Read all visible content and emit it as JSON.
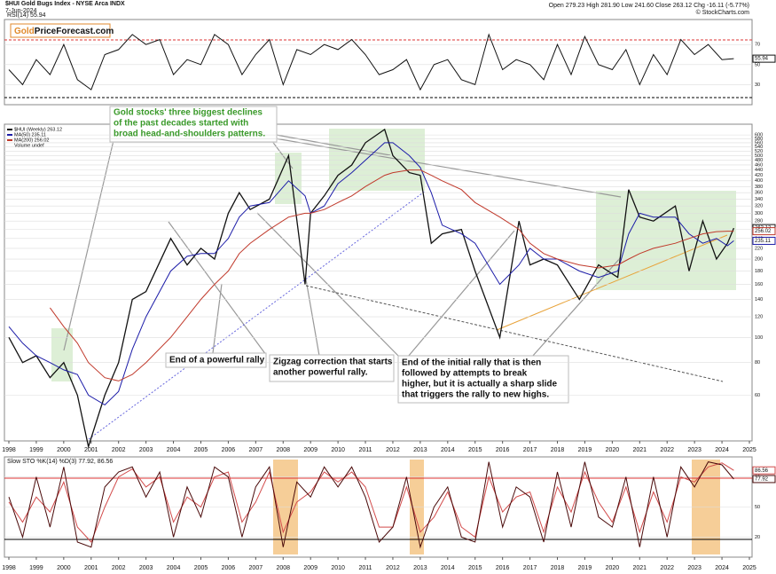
{
  "header": {
    "title": "$HUI Gold Bugs Index - NYSE Arca INDX",
    "date": "7-Jun-2024",
    "quote": "Open 279.23 High 281.90 Low 241.60 Close 263.12 Chg -16.11 (-5.77%)",
    "credit": "© StockCharts.com"
  },
  "logo": {
    "part1": "Gold",
    "part2": "PriceForecast.com"
  },
  "chart_data": [
    {
      "type": "line",
      "label": "RSI(14) 55.94",
      "x": [
        1998,
        1998.5,
        1999,
        1999.5,
        2000,
        2000.5,
        2001,
        2001.5,
        2002,
        2002.5,
        2003,
        2003.5,
        2004,
        2004.5,
        2005,
        2005.5,
        2006,
        2006.5,
        2007,
        2007.5,
        2008,
        2008.5,
        2009,
        2009.5,
        2010,
        2010.5,
        2011,
        2011.5,
        2012,
        2012.5,
        2013,
        2013.5,
        2014,
        2014.5,
        2015,
        2015.5,
        2016,
        2016.5,
        2017,
        2017.5,
        2018,
        2018.5,
        2019,
        2019.5,
        2020,
        2020.5,
        2021,
        2021.5,
        2022,
        2022.5,
        2023,
        2023.5,
        2024,
        2024.43
      ],
      "series": [
        {
          "color": "#111111",
          "values": [
            45,
            30,
            55,
            40,
            70,
            35,
            25,
            60,
            65,
            80,
            70,
            75,
            40,
            55,
            50,
            80,
            70,
            40,
            60,
            75,
            30,
            65,
            60,
            70,
            65,
            75,
            60,
            40,
            45,
            55,
            25,
            50,
            55,
            35,
            30,
            80,
            45,
            55,
            50,
            35,
            70,
            40,
            78,
            50,
            45,
            65,
            30,
            60,
            40,
            75,
            60,
            70,
            55,
            55.94
          ]
        }
      ],
      "xlim": [
        1998,
        2025
      ],
      "ylim": [
        10,
        95
      ],
      "yticks": [
        30,
        50,
        70
      ],
      "log_scale": false
    },
    {
      "type": "line",
      "log_scale": true,
      "volume_label": "Volume undef",
      "x": [
        1998.0,
        1998.5,
        1999.0,
        1999.5,
        2000.0,
        2000.5,
        2000.9,
        2001.5,
        2002.0,
        2002.5,
        2003.0,
        2003.9,
        2004.5,
        2005.0,
        2005.5,
        2006.0,
        2006.4,
        2006.8,
        2007.5,
        2008.2,
        2008.8,
        2009.0,
        2009.5,
        2010.0,
        2010.5,
        2011.0,
        2011.7,
        2012.0,
        2012.6,
        2013.0,
        2013.4,
        2013.8,
        2014.5,
        2015.0,
        2015.9,
        2016.6,
        2017.0,
        2017.5,
        2018.0,
        2018.8,
        2019.5,
        2020.2,
        2020.6,
        2021.0,
        2021.5,
        2022.3,
        2022.8,
        2023.3,
        2023.8,
        2024.2,
        2024.43
      ],
      "series": [
        {
          "name": "$HUI (Weekly) 263.12",
          "color": "#111111",
          "values": [
            100,
            80,
            85,
            70,
            80,
            60,
            38,
            60,
            80,
            140,
            150,
            240,
            190,
            220,
            200,
            300,
            360,
            310,
            340,
            500,
            160,
            300,
            350,
            420,
            460,
            560,
            630,
            500,
            430,
            420,
            230,
            250,
            260,
            180,
            100,
            280,
            190,
            200,
            190,
            140,
            190,
            170,
            370,
            290,
            280,
            320,
            180,
            280,
            200,
            230,
            263.12
          ]
        },
        {
          "name": "MA(50) 235.11",
          "color": "#1c1ca8",
          "values": [
            110,
            95,
            85,
            80,
            75,
            72,
            60,
            55,
            62,
            90,
            120,
            180,
            205,
            210,
            210,
            240,
            290,
            320,
            330,
            400,
            350,
            300,
            320,
            390,
            430,
            480,
            560,
            560,
            500,
            450,
            360,
            270,
            250,
            230,
            160,
            190,
            220,
            200,
            200,
            180,
            170,
            180,
            250,
            300,
            290,
            290,
            250,
            230,
            240,
            225,
            235.11
          ]
        },
        {
          "name": "MA(200) 256.02",
          "color": "#c0392b",
          "values": [
            null,
            null,
            null,
            130,
            110,
            95,
            80,
            70,
            68,
            72,
            80,
            100,
            120,
            140,
            160,
            180,
            210,
            230,
            260,
            290,
            300,
            300,
            310,
            330,
            350,
            380,
            420,
            430,
            440,
            440,
            420,
            400,
            370,
            330,
            290,
            260,
            230,
            210,
            200,
            190,
            185,
            190,
            200,
            210,
            220,
            230,
            240,
            250,
            255,
            256,
            256.02
          ]
        }
      ],
      "xlim": [
        1998,
        2025
      ],
      "ylim": [
        40,
        660
      ],
      "yticks": [
        60,
        80,
        100,
        120,
        140,
        160,
        180,
        200,
        220,
        240,
        260,
        280,
        300,
        320,
        340,
        360,
        380,
        400,
        420,
        440,
        460,
        480,
        500,
        520,
        540,
        560,
        580,
        600
      ],
      "xticks": [
        1998,
        1999,
        2000,
        2001,
        2002,
        2003,
        2004,
        2005,
        2006,
        2007,
        2008,
        2009,
        2010,
        2011,
        2012,
        2013,
        2014,
        2015,
        2016,
        2017,
        2018,
        2019,
        2020,
        2021,
        2022,
        2023,
        2024,
        2025
      ],
      "annotations": [
        [
          "Gold stocks' three biggest declines",
          "of the past decades started with",
          "broad head-and-shoulders patterns."
        ],
        [
          "End of a powerful rally"
        ],
        [
          "Zigzag correction that starts",
          "another powerful rally."
        ],
        [
          "End of the initial rally that is then",
          "followed by attempts to break",
          "higher, but it is actually a sharp slide",
          "that triggers the rally to new highs."
        ]
      ]
    },
    {
      "type": "line",
      "label": "Slow STO %K(14) %D(3) 77.92, 86.56",
      "x": [
        1998,
        1998.5,
        1999,
        1999.5,
        2000,
        2000.5,
        2001,
        2001.5,
        2002,
        2002.5,
        2003,
        2003.5,
        2004,
        2004.5,
        2005,
        2005.5,
        2006,
        2006.5,
        2007,
        2007.5,
        2008,
        2008.5,
        2009,
        2009.5,
        2010,
        2010.5,
        2011,
        2011.5,
        2012,
        2012.5,
        2013,
        2013.5,
        2014,
        2014.5,
        2015,
        2015.5,
        2016,
        2016.5,
        2017,
        2017.5,
        2018,
        2018.5,
        2019,
        2019.5,
        2020,
        2020.5,
        2021,
        2021.5,
        2022,
        2022.5,
        2023,
        2023.5,
        2024,
        2024.43
      ],
      "series": [
        {
          "color": "#d24a4a",
          "values": [
            55,
            35,
            60,
            45,
            75,
            30,
            15,
            50,
            80,
            88,
            70,
            80,
            35,
            60,
            50,
            80,
            85,
            35,
            55,
            85,
            25,
            55,
            65,
            85,
            75,
            85,
            70,
            30,
            30,
            70,
            25,
            40,
            65,
            30,
            20,
            80,
            45,
            60,
            65,
            25,
            70,
            45,
            85,
            55,
            35,
            70,
            25,
            65,
            35,
            80,
            75,
            90,
            94,
            86.56
          ]
        },
        {
          "color": "#4a0a0a",
          "values": [
            60,
            20,
            80,
            30,
            90,
            15,
            10,
            70,
            85,
            90,
            60,
            85,
            20,
            70,
            40,
            90,
            80,
            20,
            70,
            90,
            10,
            75,
            60,
            90,
            70,
            90,
            60,
            15,
            30,
            80,
            10,
            50,
            70,
            20,
            15,
            95,
            30,
            70,
            60,
            15,
            85,
            30,
            95,
            40,
            30,
            80,
            10,
            80,
            20,
            90,
            70,
            95,
            92,
            77.92
          ]
        }
      ],
      "xlim": [
        1998,
        2025
      ],
      "ylim": [
        0,
        100
      ],
      "yticks": [
        20,
        50,
        80
      ],
      "log_scale": false,
      "xticks": [
        1998,
        1999,
        2000,
        2001,
        2002,
        2003,
        2004,
        2005,
        2006,
        2007,
        2008,
        2009,
        2010,
        2011,
        2012,
        2013,
        2014,
        2015,
        2016,
        2017,
        2018,
        2019,
        2020,
        2021,
        2022,
        2023,
        2024,
        2025
      ]
    }
  ]
}
